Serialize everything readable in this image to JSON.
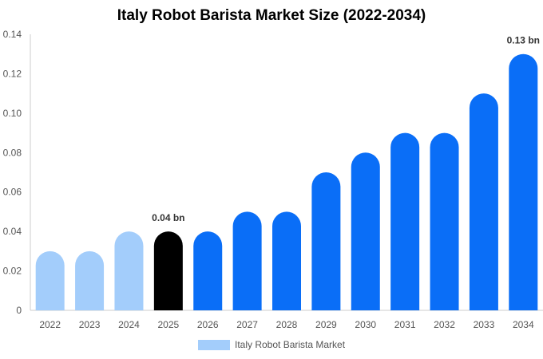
{
  "chart_data": {
    "type": "bar",
    "title": "Italy Robot Barista Market Size (2022-2034)",
    "categories": [
      "2022",
      "2023",
      "2024",
      "2025",
      "2026",
      "2027",
      "2028",
      "2029",
      "2030",
      "2031",
      "2032",
      "2033",
      "2034"
    ],
    "series": [
      {
        "name": "Italy Robot Barista Market",
        "values": [
          0.03,
          0.03,
          0.04,
          0.04,
          0.04,
          0.05,
          0.05,
          0.07,
          0.08,
          0.09,
          0.09,
          0.11,
          0.13
        ]
      }
    ],
    "ylim": [
      0,
      0.14
    ],
    "yticks": [
      "0",
      "0.02",
      "0.04",
      "0.06",
      "0.08",
      "0.10",
      "0.12",
      "0.14"
    ],
    "annotations": [
      {
        "category": "2025",
        "label": "0.04 bn"
      },
      {
        "category": "2034",
        "label": "0.13 bn"
      }
    ],
    "colors": {
      "historical": "#a3cdfb",
      "base_year": "#000000",
      "forecast": "#0a6ef7"
    },
    "base_year": "2025",
    "legend_position": "bottom",
    "grid": false
  }
}
